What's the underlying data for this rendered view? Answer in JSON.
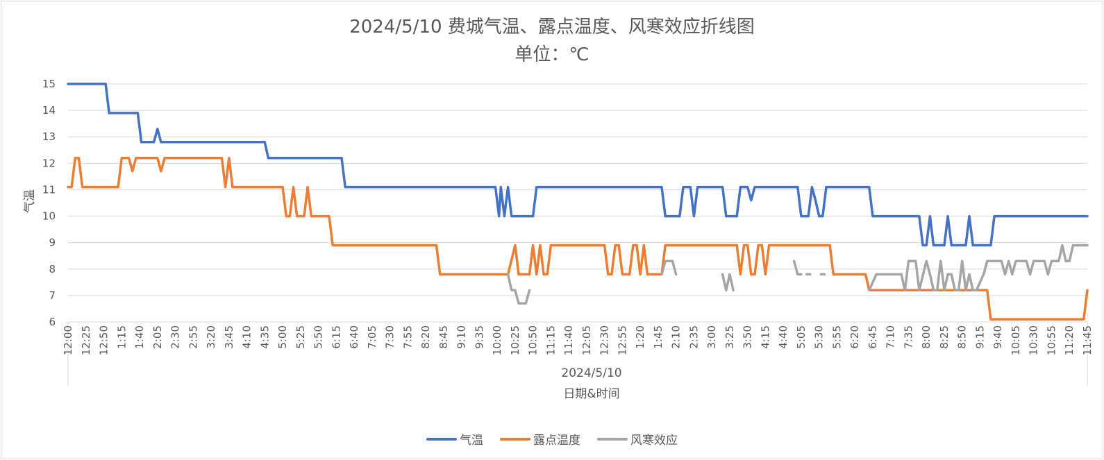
{
  "chart_data": {
    "type": "line",
    "title": "2024/5/10 费城气温、露点温度、风寒效应折线图",
    "subtitle": "单位：℃",
    "ylabel": "气温",
    "xlabel": "日期&时间",
    "x_group_label": "2024/5/10",
    "ylim": [
      6,
      15
    ],
    "yticks": [
      6,
      7,
      8,
      9,
      10,
      11,
      12,
      13,
      14,
      15
    ],
    "grid": true,
    "legend_position": "bottom",
    "x_ticks": [
      "12:00",
      "12:25",
      "12:50",
      "1:15",
      "1:40",
      "2:05",
      "2:30",
      "2:55",
      "3:20",
      "3:45",
      "4:10",
      "4:35",
      "5:00",
      "5:25",
      "5:50",
      "6:15",
      "6:40",
      "7:05",
      "7:30",
      "7:55",
      "8:20",
      "8:45",
      "9:10",
      "9:35",
      "10:00",
      "10:25",
      "10:50",
      "11:15",
      "11:40",
      "12:05",
      "12:30",
      "12:55",
      "1:20",
      "1:45",
      "2:10",
      "2:35",
      "3:00",
      "3:25",
      "3:50",
      "4:15",
      "4:40",
      "5:05",
      "5:30",
      "5:55",
      "6:20",
      "6:45",
      "7:10",
      "7:35",
      "8:00",
      "8:25",
      "8:50",
      "9:15",
      "9:40",
      "10:05",
      "10:30",
      "10:55",
      "11:20",
      "11:45"
    ],
    "series": [
      {
        "name": "气温",
        "color": "#4472c4",
        "points": [
          [
            0,
            15
          ],
          [
            10.5,
            15
          ],
          [
            11.5,
            13.9
          ],
          [
            19.5,
            13.9
          ],
          [
            20.5,
            12.8
          ],
          [
            24,
            12.8
          ],
          [
            25,
            13.3
          ],
          [
            26,
            12.8
          ],
          [
            55,
            12.8
          ],
          [
            56,
            12.2
          ],
          [
            76.5,
            12.2
          ],
          [
            77.5,
            11.1
          ],
          [
            119.5,
            11.1
          ],
          [
            120.5,
            10
          ],
          [
            121,
            11.1
          ],
          [
            122,
            10
          ],
          [
            123,
            11.1
          ],
          [
            124,
            10
          ],
          [
            130,
            10
          ],
          [
            131,
            11.1
          ],
          [
            166,
            11.1
          ],
          [
            167,
            10
          ],
          [
            171,
            10
          ],
          [
            172,
            11.1
          ],
          [
            174,
            11.1
          ],
          [
            175,
            10
          ],
          [
            176,
            11.1
          ],
          [
            183,
            11.1
          ],
          [
            184,
            10
          ],
          [
            187,
            10
          ],
          [
            188,
            11.1
          ],
          [
            190,
            11.1
          ],
          [
            191,
            10.6
          ],
          [
            192,
            11.1
          ],
          [
            204,
            11.1
          ],
          [
            205,
            10
          ],
          [
            207,
            10
          ],
          [
            208,
            11.1
          ],
          [
            209,
            10.6
          ],
          [
            210,
            10
          ],
          [
            211,
            10
          ],
          [
            212,
            11.1
          ],
          [
            224,
            11.1
          ],
          [
            225,
            10
          ],
          [
            238,
            10
          ],
          [
            239,
            8.9
          ],
          [
            240,
            8.9
          ],
          [
            241,
            10
          ],
          [
            242,
            8.9
          ],
          [
            245,
            8.9
          ],
          [
            246,
            10
          ],
          [
            247,
            8.9
          ],
          [
            251,
            8.9
          ],
          [
            252,
            10
          ],
          [
            253,
            8.9
          ],
          [
            258,
            8.9
          ],
          [
            259,
            10
          ],
          [
            285,
            10
          ]
        ]
      },
      {
        "name": "露点温度",
        "color": "#ed7d31",
        "points": [
          [
            0,
            11.1
          ],
          [
            1,
            11.1
          ],
          [
            2,
            12.2
          ],
          [
            3,
            12.2
          ],
          [
            4,
            11.1
          ],
          [
            14,
            11.1
          ],
          [
            15,
            12.2
          ],
          [
            17,
            12.2
          ],
          [
            18,
            11.7
          ],
          [
            19,
            12.2
          ],
          [
            25,
            12.2
          ],
          [
            26,
            11.7
          ],
          [
            27,
            12.2
          ],
          [
            43,
            12.2
          ],
          [
            44,
            11.1
          ],
          [
            45,
            12.2
          ],
          [
            46,
            11.1
          ],
          [
            60,
            11.1
          ],
          [
            61,
            10
          ],
          [
            62,
            10
          ],
          [
            63,
            11.1
          ],
          [
            64,
            10
          ],
          [
            66,
            10
          ],
          [
            67,
            11.1
          ],
          [
            68,
            10
          ],
          [
            73,
            10
          ],
          [
            74,
            8.9
          ],
          [
            103,
            8.9
          ],
          [
            104,
            7.8
          ],
          [
            123,
            7.8
          ],
          [
            125,
            8.9
          ],
          [
            126,
            7.8
          ],
          [
            129,
            7.8
          ],
          [
            130,
            8.9
          ],
          [
            131,
            7.8
          ],
          [
            132,
            8.9
          ],
          [
            133,
            7.8
          ],
          [
            134,
            7.8
          ],
          [
            135,
            8.9
          ],
          [
            150,
            8.9
          ],
          [
            151,
            7.8
          ],
          [
            152,
            7.8
          ],
          [
            153,
            8.9
          ],
          [
            154,
            8.9
          ],
          [
            155,
            7.8
          ],
          [
            157,
            7.8
          ],
          [
            158,
            8.9
          ],
          [
            159,
            8.9
          ],
          [
            160,
            7.8
          ],
          [
            161,
            8.9
          ],
          [
            162,
            7.8
          ],
          [
            166,
            7.8
          ],
          [
            167,
            8.9
          ],
          [
            187,
            8.9
          ],
          [
            188,
            7.8
          ],
          [
            189,
            8.9
          ],
          [
            190,
            8.9
          ],
          [
            191,
            7.8
          ],
          [
            192,
            7.8
          ],
          [
            193,
            8.9
          ],
          [
            194,
            8.9
          ],
          [
            195,
            7.8
          ],
          [
            196,
            8.9
          ],
          [
            213,
            8.9
          ],
          [
            214,
            7.8
          ],
          [
            223,
            7.8
          ],
          [
            224,
            7.2
          ],
          [
            257,
            7.2
          ],
          [
            258,
            6.1
          ],
          [
            284,
            6.1
          ],
          [
            285,
            7.2
          ]
        ]
      },
      {
        "name": "风寒效应",
        "color": "#a5a5a5",
        "segments": [
          [
            [
              123,
              7.8
            ],
            [
              124,
              7.2
            ],
            [
              125,
              7.2
            ],
            [
              126,
              6.7
            ],
            [
              128,
              6.7
            ],
            [
              129,
              7.2
            ]
          ],
          [
            [
              166,
              7.8
            ],
            [
              167,
              8.3
            ],
            [
              169,
              8.3
            ],
            [
              170,
              7.8
            ]
          ],
          [
            [
              183,
              7.8
            ],
            [
              184,
              7.2
            ],
            [
              185,
              7.8
            ],
            [
              186,
              7.2
            ]
          ],
          [
            [
              203,
              8.3
            ],
            [
              204,
              7.8
            ],
            [
              205,
              7.8
            ]
          ],
          [
            [
              206.5,
              7.8
            ],
            [
              207.5,
              7.8
            ]
          ],
          [
            [
              210.5,
              7.8
            ],
            [
              211.5,
              7.8
            ]
          ],
          [
            [
              224,
              7.2
            ],
            [
              226,
              7.8
            ],
            [
              233,
              7.8
            ],
            [
              234,
              7.2
            ],
            [
              235,
              8.3
            ],
            [
              237,
              8.3
            ],
            [
              238,
              7.2
            ],
            [
              240,
              8.3
            ],
            [
              241,
              7.8
            ],
            [
              242,
              7.2
            ],
            [
              243,
              7.2
            ],
            [
              244,
              8.3
            ],
            [
              245,
              7.2
            ],
            [
              246,
              7.8
            ],
            [
              247,
              7.8
            ],
            [
              248,
              7.2
            ],
            [
              249,
              7.2
            ],
            [
              250,
              8.3
            ],
            [
              251,
              7.2
            ],
            [
              252,
              7.8
            ],
            [
              253,
              7.2
            ],
            [
              254,
              7.2
            ],
            [
              256,
              7.8
            ],
            [
              257,
              8.3
            ],
            [
              261,
              8.3
            ],
            [
              262,
              7.8
            ],
            [
              263,
              8.3
            ],
            [
              264,
              7.8
            ],
            [
              265,
              8.3
            ],
            [
              268,
              8.3
            ],
            [
              269,
              7.8
            ],
            [
              270,
              8.3
            ],
            [
              273,
              8.3
            ],
            [
              274,
              7.8
            ],
            [
              275,
              8.3
            ],
            [
              277,
              8.3
            ],
            [
              278,
              8.9
            ],
            [
              279,
              8.3
            ],
            [
              280,
              8.3
            ],
            [
              281,
              8.9
            ],
            [
              285,
              8.9
            ]
          ]
        ]
      }
    ]
  }
}
